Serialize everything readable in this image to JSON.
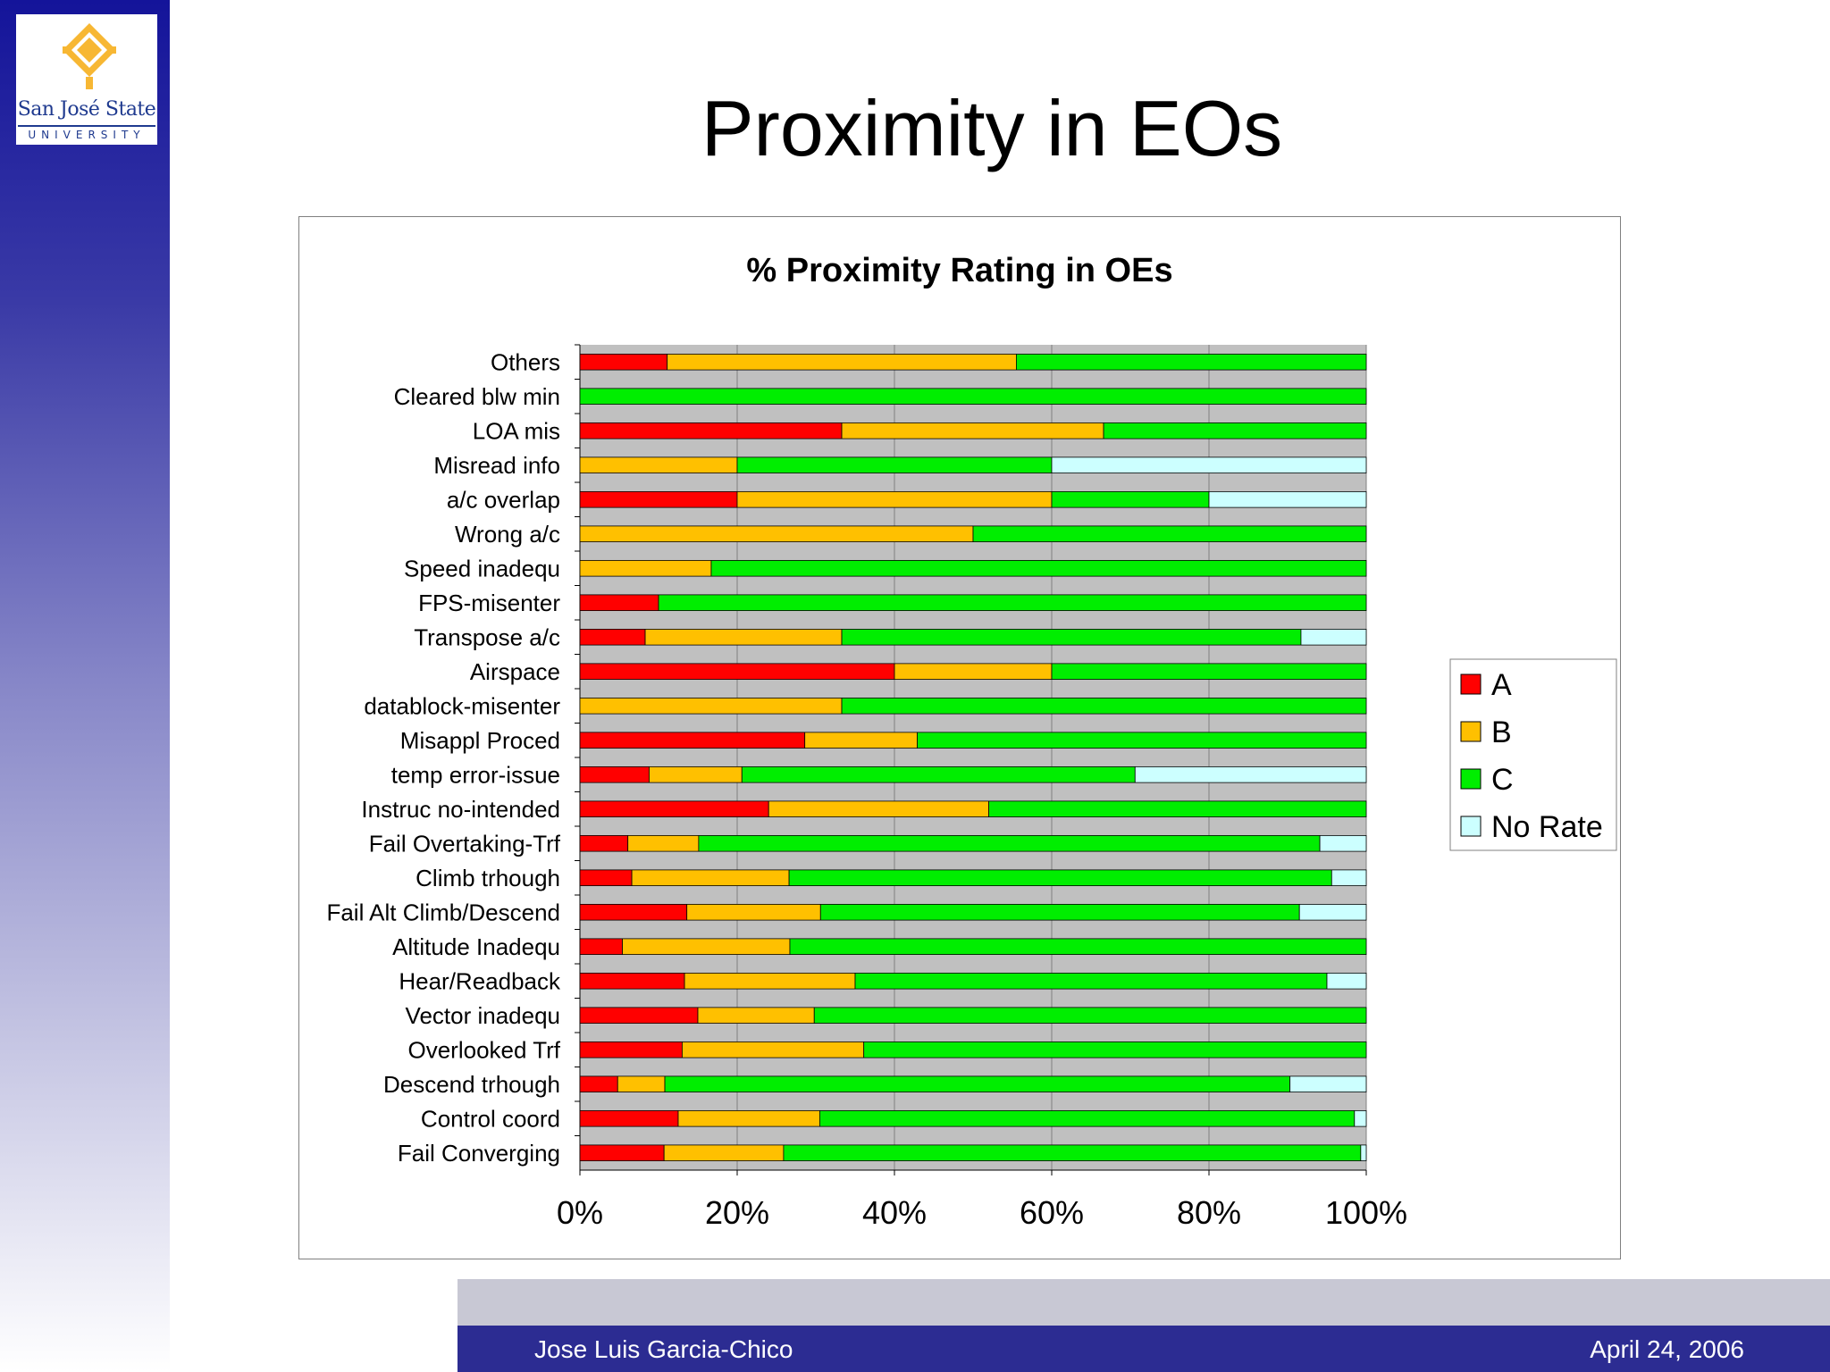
{
  "slide": {
    "title": "Proximity in EOs",
    "logo": {
      "name": "San José State",
      "sub": "UNIVERSITY"
    },
    "footer": {
      "author": "Jose Luis Garcia-Chico",
      "date": "April 24, 2006"
    }
  },
  "colors": {
    "A": "#ff0000",
    "B": "#ffc000",
    "C": "#00ee00",
    "No Rate": "#ccffff",
    "plot_bg": "#c0c0c0",
    "gridline": "#808080"
  },
  "chart_data": {
    "type": "bar",
    "orientation": "horizontal",
    "stacked": "100%",
    "title": "% Proximity Rating in OEs",
    "xlabel": "",
    "ylabel": "",
    "xlim": [
      0,
      100
    ],
    "x_ticks": [
      "0%",
      "20%",
      "40%",
      "60%",
      "80%",
      "100%"
    ],
    "grid": true,
    "legend": "right",
    "categories": [
      "Others",
      "Cleared blw min",
      "LOA mis",
      "Misread info",
      "a/c overlap",
      "Wrong a/c",
      "Speed inadequ",
      "FPS-misenter",
      "Transpose a/c",
      "Airspace",
      "datablock-misenter",
      "Misappl Proced",
      "temp error-issue",
      "Instruc no-intended",
      "Fail Overtaking-Trf",
      "Climb trhough",
      "Fail Alt Climb/Descend",
      "Altitude Inadequ",
      "Hear/Readback",
      "Vector inadequ",
      "Overlooked Trf",
      "Descend trhough",
      "Control coord",
      "Fail Converging"
    ],
    "series": [
      {
        "name": "A",
        "values": [
          11.1,
          0,
          33.3,
          0,
          20,
          0,
          0,
          10,
          8.3,
          40,
          0,
          28.6,
          8.8,
          24,
          6.1,
          6.6,
          13.6,
          5.4,
          13.3,
          15,
          13,
          4.8,
          12.5,
          10.7
        ]
      },
      {
        "name": "B",
        "values": [
          44.4,
          0,
          33.3,
          20,
          40,
          50,
          16.7,
          0,
          25,
          20,
          33.3,
          14.3,
          11.8,
          28,
          9,
          20,
          17,
          21.3,
          21.7,
          14.8,
          23.1,
          6,
          18,
          15.2
        ]
      },
      {
        "name": "C",
        "values": [
          44.5,
          100,
          33.4,
          40,
          20,
          50,
          83.3,
          90,
          58.4,
          40,
          66.7,
          57.1,
          50,
          48,
          79,
          69,
          60.9,
          73.3,
          60,
          70.2,
          63.9,
          79.5,
          68,
          73.4
        ]
      },
      {
        "name": "No Rate",
        "values": [
          0,
          0,
          0,
          40,
          20,
          0,
          0,
          0,
          8.3,
          0,
          0,
          0,
          29.4,
          0,
          5.9,
          4.4,
          8.5,
          0,
          5,
          0,
          0,
          9.7,
          1.5,
          0.7
        ]
      }
    ]
  }
}
